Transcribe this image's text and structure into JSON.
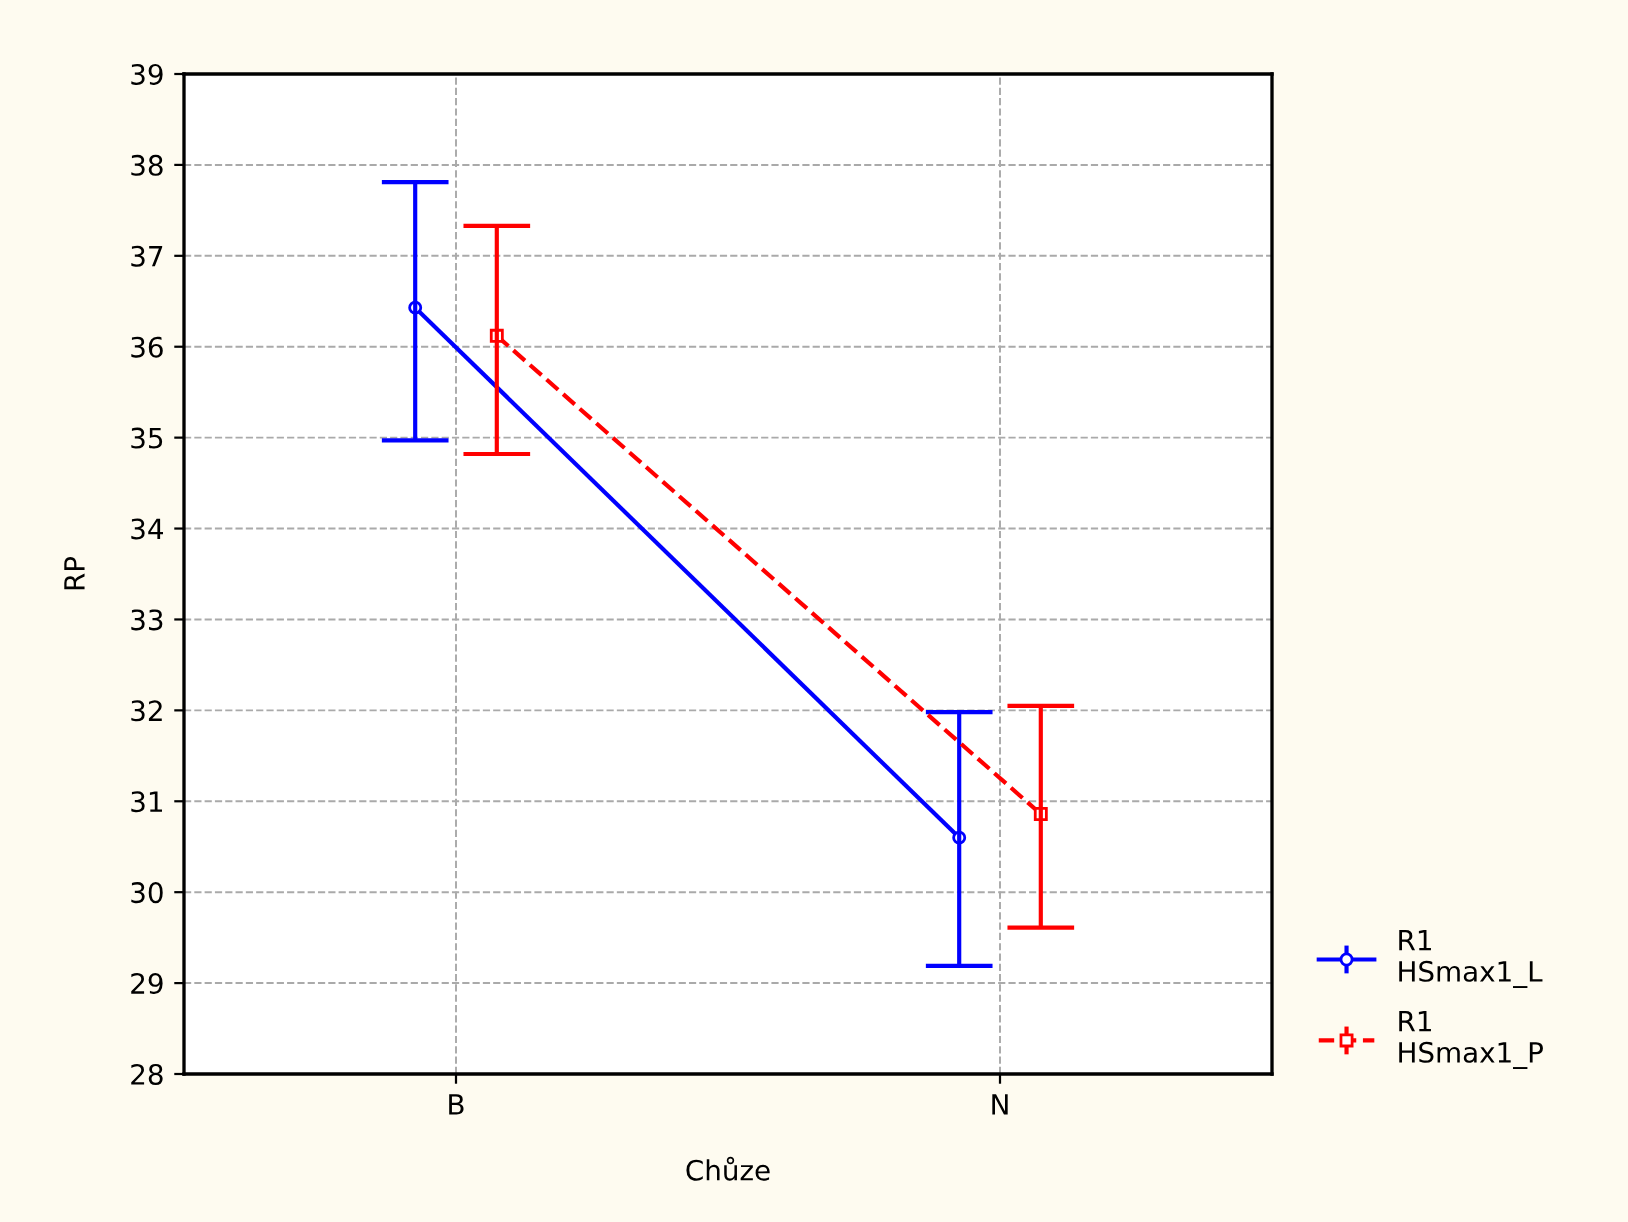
{
  "chart_data": {
    "type": "line",
    "xlabel": "Chůze",
    "ylabel": "RP",
    "categories": [
      "B",
      "N"
    ],
    "series": [
      {
        "name": "R1\nHSmax1_L",
        "color": "#0000ff",
        "values": [
          36.43,
          30.6
        ],
        "errors": [
          [
            34.97,
            37.81
          ],
          [
            29.19,
            31.98
          ]
        ],
        "marker": "circle",
        "line_style": "solid"
      },
      {
        "name": "R1\nHSmax1_P",
        "color": "#ff0000",
        "values": [
          36.12,
          30.86
        ],
        "errors": [
          [
            34.82,
            37.33
          ],
          [
            29.61,
            32.05
          ]
        ],
        "marker": "square",
        "line_style": "dashed"
      }
    ],
    "ylim": [
      28,
      39
    ],
    "yticks": [
      28,
      29,
      30,
      31,
      32,
      33,
      34,
      35,
      36,
      37,
      38,
      39
    ],
    "grid": true,
    "legend": "bottom right"
  }
}
